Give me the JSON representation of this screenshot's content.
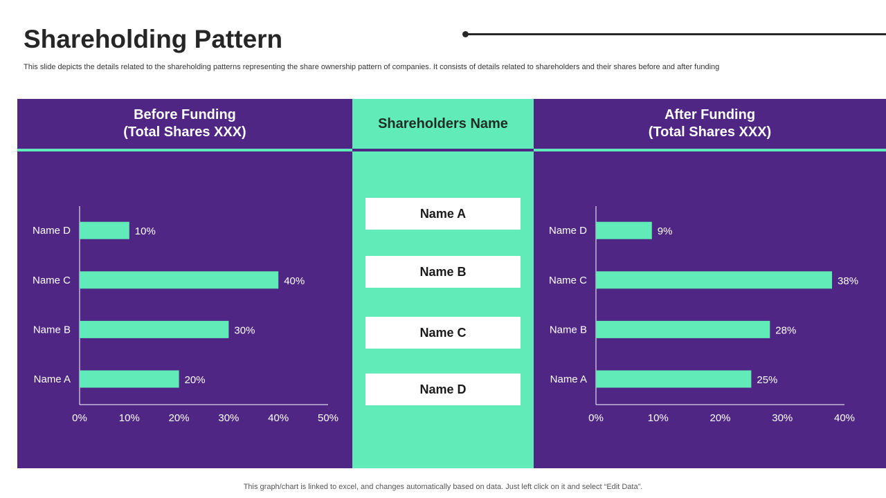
{
  "page": {
    "title": "Shareholding Pattern",
    "subtitle": "This slide depicts the details related to the shareholding patterns representing the share ownership pattern of companies. It consists of details related to shareholders and their shares before and after funding",
    "footer": "This graph/chart is linked to excel,  and changes automatically based on data. Just left click on it and select “Edit Data”."
  },
  "colors": {
    "purple": "#4f2683",
    "mint": "#61ebb8",
    "white": "#ffffff"
  },
  "left_panel": {
    "title_line1": "Before Funding",
    "title_line2": "(Total Shares XXX)"
  },
  "middle_panel": {
    "title": "Shareholders Name",
    "names": [
      "Name A",
      "Name B",
      "Name C",
      "Name D"
    ]
  },
  "right_panel": {
    "title_line1": "After Funding",
    "title_line2": "(Total Shares XXX)"
  },
  "chart_data": [
    {
      "type": "bar",
      "orientation": "horizontal",
      "title": "Before Funding (Total Shares XXX)",
      "categories": [
        "Name A",
        "Name B",
        "Name C",
        "Name D"
      ],
      "values": [
        20,
        30,
        40,
        10
      ],
      "value_labels": [
        "20%",
        "30%",
        "40%",
        "10%"
      ],
      "xlim": [
        0,
        50
      ],
      "ticks": [
        "0%",
        "10%",
        "20%",
        "30%",
        "40%",
        "50%"
      ],
      "grid": false
    },
    {
      "type": "bar",
      "orientation": "horizontal",
      "title": "After Funding (Total Shares XXX)",
      "categories": [
        "Name A",
        "Name B",
        "Name C",
        "Name D"
      ],
      "values": [
        25,
        28,
        38,
        9
      ],
      "value_labels": [
        "25%",
        "28%",
        "38%",
        "9%"
      ],
      "xlim": [
        0,
        40
      ],
      "ticks": [
        "0%",
        "10%",
        "20%",
        "30%",
        "40%"
      ],
      "grid": false
    }
  ]
}
